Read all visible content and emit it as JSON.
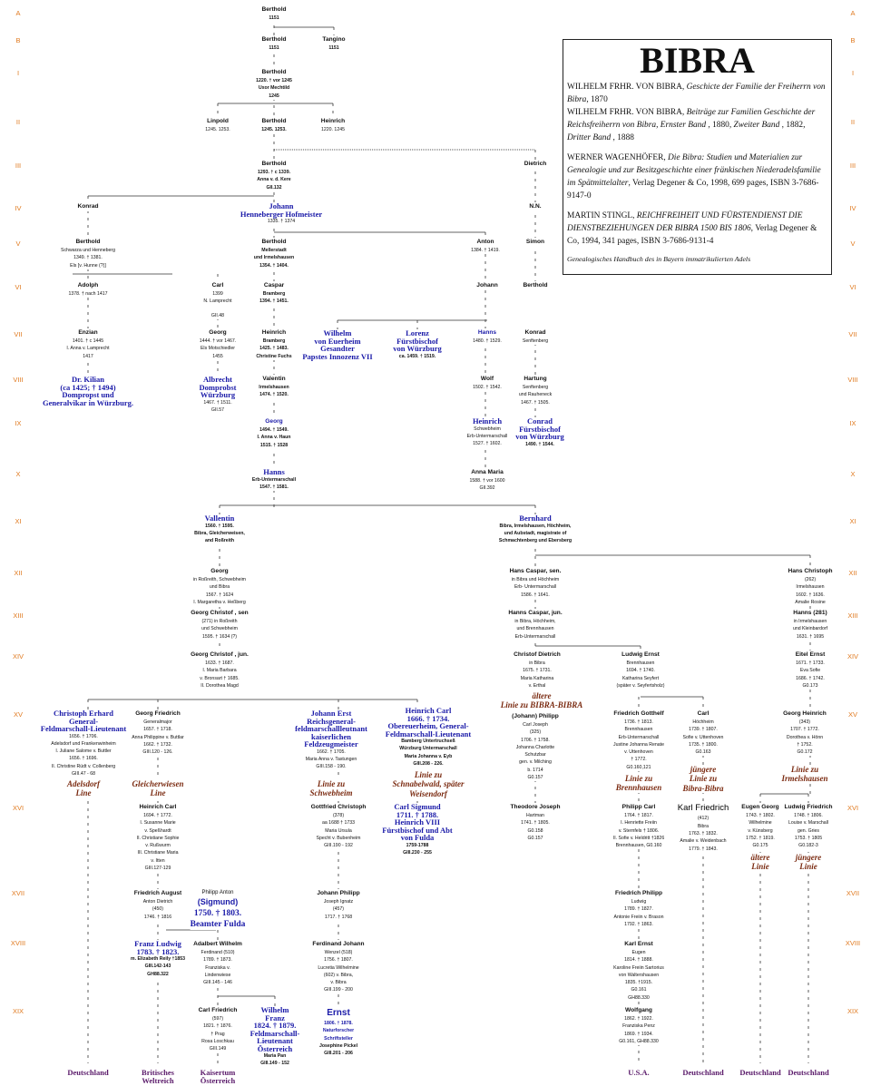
{
  "generations": [
    "A",
    "B",
    "I",
    "II",
    "III",
    "IV",
    "V",
    "VI",
    "VII",
    "VIII",
    "IX",
    "X",
    "XI",
    "XII",
    "XIII",
    "XIV",
    "XV",
    "XVI",
    "XVII",
    "XVIII",
    "XIX"
  ],
  "references": {
    "title": "BIBRA",
    "entries": [
      [
        {
          "t": "WILHELM FRHR. VON BIBRA, ",
          "i": false
        },
        {
          "t": "Geschicte der Familie der Freiherrn von Bibra",
          "i": true
        },
        {
          "t": ", 1870",
          "i": false
        }
      ],
      [
        {
          "t": "WILHELM FRHR. VON BIBRA, ",
          "i": false
        },
        {
          "t": "Beiträge zur Familien Geschichte der Reichsfreiherrn von Bibra, Ernster Band",
          "i": true
        },
        {
          "t": " , 1880, ",
          "i": false
        },
        {
          "t": "Zweiter Band",
          "i": true
        },
        {
          "t": " , 1882, ",
          "i": false
        },
        {
          "t": "Dritter Band",
          "i": true
        },
        {
          "t": " , 1888",
          "i": false
        }
      ],
      [
        {
          "t": "WERNER WAGENHÖFER, ",
          "i": false
        },
        {
          "t": "Die Bibra: Studien und Materialien zur Genealogie und zur Besitzgeschichte einer fränkischen Niederadelsfamilie im Spätmittelalter",
          "i": true
        },
        {
          "t": ", Verlag Degener & Co, 1998, 699 pages, ISBN 3-7686-9147-0",
          "i": false
        }
      ],
      [
        {
          "t": "MARTIN STINGL, ",
          "i": false
        },
        {
          "t": "REICHFREIHEIT UND FÜRSTENDIENST DIE DIENSTBEZIEHUNGEN DER BIBRA 1500 BIS 1806",
          "i": true
        },
        {
          "t": ", Verlag Degener & Co, 1994, 341 pages,  ISBN 3-7686-9131-4",
          "i": false
        }
      ]
    ],
    "footer": "Genealogisches Handbuch des in Bayern immatrikulierten Adels"
  },
  "persons": [
    {
      "name": "Berthold",
      "details": [
        "1151"
      ],
      "kind": "strong"
    },
    {
      "name": "Berthold",
      "details": [
        "1151"
      ],
      "kind": "strong"
    },
    {
      "name": "Tangino",
      "details": [
        "1151"
      ],
      "kind": "strong"
    },
    {
      "name": "Berthold",
      "details": [
        "1220. † vor 1245",
        "Uxor Mechtild",
        "1245"
      ],
      "kind": "strong"
    },
    {
      "name": "Linpold",
      "details": [
        "1245. 1253."
      ],
      "kind": "person"
    },
    {
      "name": "Berthold",
      "details": [
        "1245. 1253."
      ],
      "kind": "strong"
    },
    {
      "name": "Heinrich",
      "details": [
        "1220. 1245"
      ],
      "kind": "person"
    },
    {
      "name": "Berthold",
      "details": [
        "1293. † c 1339.",
        "Anna v. d. Kere",
        "GII.132"
      ],
      "kind": "strong"
    },
    {
      "name": "Dietrich",
      "details": [],
      "kind": "person"
    },
    {
      "name": "Konrad",
      "details": [],
      "kind": "person"
    },
    {
      "name": "Johann\nHenneberger Hofmeister",
      "details": [
        "1335. † 1374"
      ],
      "kind": "notable"
    },
    {
      "name": "N.N.",
      "details": [],
      "kind": "person"
    },
    {
      "name": "Berthold",
      "details": [
        "Schwarza und Henneberg",
        "1349. † 1381.",
        "Els [v. Hunne (?)]"
      ],
      "kind": "person"
    },
    {
      "name": "Berthold",
      "details": [
        "Mellerstadt",
        "und Irmelshausen",
        "1354. † 1404."
      ],
      "kind": "strong"
    },
    {
      "name": "Anton",
      "details": [
        "1384. † 1419."
      ],
      "kind": "person"
    },
    {
      "name": "Simon",
      "details": [],
      "kind": "person"
    },
    {
      "name": "Adolph",
      "details": [
        "1378. † nach 1417"
      ],
      "kind": "person"
    },
    {
      "name": "Carl",
      "details": [
        "1399",
        "N. Lamprecht",
        "",
        "GII.48"
      ],
      "kind": "person"
    },
    {
      "name": "Caspar",
      "details": [
        "Bramberg",
        "1394. † 1451."
      ],
      "kind": "strong"
    },
    {
      "name": "Johann",
      "details": [],
      "kind": "person"
    },
    {
      "name": "Berthold",
      "details": [],
      "kind": "person"
    },
    {
      "name": "Enzian",
      "details": [
        "1401. † c 1445",
        "I. Anna v. Lamprecht",
        "1417"
      ],
      "kind": "person"
    },
    {
      "name": "Georg",
      "details": [
        "1444. † vor 1467.",
        "Els Motschiedler",
        "1455"
      ],
      "kind": "person"
    },
    {
      "name": "Heinrich",
      "details": [
        "Bramberg",
        "1425. † 1483.",
        "Christine Fuchs"
      ],
      "kind": "strong"
    },
    {
      "name": "Wilhelm\nvon Euerheim\nGesandter\nPapstes Innozenz VII",
      "details": [],
      "kind": "notable"
    },
    {
      "name": "Lorenz\nFürstbischof\nvon Würzburg",
      "details": [
        "ca. 1459. † 1519."
      ],
      "kind": "notable strong"
    },
    {
      "name": "Hanns",
      "details": [
        "1480. † 1529."
      ],
      "kind": "notable-small"
    },
    {
      "name": "Konrad",
      "details": [
        "Senftenberg"
      ],
      "kind": "person"
    },
    {
      "name": "Dr. Kilian\n(ca 1425; † 1494)\nDompropst und\nGeneralvikar in Würzburg.",
      "details": [],
      "kind": "notable"
    },
    {
      "name": "Albrecht\nDomprobst\nWürzburg",
      "details": [
        "1467. † 1511.",
        "GII.57"
      ],
      "kind": "notable"
    },
    {
      "name": "Valentin",
      "details": [
        "Irmelshausen",
        "1474. † 1520."
      ],
      "kind": "strong"
    },
    {
      "name": "Wolf",
      "details": [
        "1502. † 1542."
      ],
      "kind": "person"
    },
    {
      "name": "Hartung",
      "details": [
        "Senftenberg",
        "und Rauheneck",
        "1467. † 1505."
      ],
      "kind": "person"
    },
    {
      "name": "Georg",
      "details": [
        "1494. † 1549.",
        "I. Anna v. Haun",
        "1515. † 1528"
      ],
      "kind": "notable-small strong"
    },
    {
      "name": "Heinrich",
      "details": [
        "Schwebheim",
        "Erb-Untermarschall",
        "1527. † 1602."
      ],
      "kind": "notable"
    },
    {
      "name": "Conrad\nFürstbischof\nvon Würzburg",
      "details": [
        "1490. † 1544."
      ],
      "kind": "notable strong"
    },
    {
      "name": "Hanns",
      "details": [
        "Erb-Untermarschall",
        "1547. † 1581."
      ],
      "kind": "notable strong"
    },
    {
      "name": "Anna Maria",
      "details": [
        "1588. † vor 1600",
        "GII.392"
      ],
      "kind": "person"
    },
    {
      "name": "Vallentin",
      "details": [
        "1560. † 1595.",
        "Bibra, Gleicherweisen,",
        "and Roßreith"
      ],
      "kind": "notable strong"
    },
    {
      "name": "Bernhard",
      "details": [
        "Bibra, Irmelshausen, Höchheim,",
        "und Aubstadt, magistrate of",
        "Schmachtenberg und Ebersberg"
      ],
      "kind": "notable strong"
    },
    {
      "name": "Georg",
      "details": [
        "in Roßreith, Schwebheim",
        "und Bibra",
        "1567. † 1624",
        "I. Margaretha v. Heßberg"
      ],
      "kind": "person"
    },
    {
      "name": "Hans Caspar, sen.",
      "details": [
        "in Bibra und Höchheim",
        "Erb- Untermarschall",
        "1586. † 1641."
      ],
      "kind": "person"
    },
    {
      "name": "Hans Christoph",
      "details": [
        "(262)",
        "Irmelshausen",
        "1602. † 1636.",
        "Amalie Rosine"
      ],
      "kind": "person"
    },
    {
      "name": "Georg Christof , sen",
      "details": [
        "(271) in Roßreith",
        "und Schwebheim",
        "1595. † 1634 (?)"
      ],
      "kind": "person"
    },
    {
      "name": "Hanns Caspar, jun.",
      "details": [
        "in Bibra, Höchheim,",
        "und Brennhausen",
        "Erb-Untermarschall"
      ],
      "kind": "person"
    },
    {
      "name": "Hanns (281)",
      "details": [
        "in Irmelshausen",
        "und Kleinbardorf",
        "1631. † 1695"
      ],
      "kind": "person"
    },
    {
      "name": "Georg Christof , jun.",
      "details": [
        "1633. † 1687.",
        "I. Maria Barbara",
        "v. Bronsart † 1685.",
        "II. Dorothea Magd"
      ],
      "kind": "person"
    },
    {
      "name": "Christof Dietrich",
      "details": [
        "in Bibra",
        "1675. † 1731.",
        "Maria Katharina",
        "v. Erthal"
      ],
      "kind": "person"
    },
    {
      "name": "Ludwig Ernst",
      "details": [
        "Brennhausen",
        "1694. † 1740.",
        "Katharina Seyfert",
        "(später v. Seyfertsholz)"
      ],
      "kind": "person"
    },
    {
      "name": "Eitel Ernst",
      "details": [
        "1671. † 1733.",
        "Eva Sofie",
        "1686. † 1742.",
        "G0.173"
      ],
      "kind": "person"
    },
    {
      "name": "Christoph Erhard\nGeneral-\nFeldmarschall-Lieutenant",
      "details": [
        "1656. † 1706.",
        "Adelsdorf und Frankenwinheim",
        "I. Juliane Salome v. Buttler",
        "1656. † 1696.",
        "II. Christine Rüdt v. Collenberg",
        "GIII.47 - 68"
      ],
      "kind": "notable"
    },
    {
      "name": "Georg Friedrich",
      "details": [
        "Generalmajor",
        "1657. † 1718.",
        "Anna Philippine v. Buttlar",
        "1662. † 1732.",
        "GIII.120 - 126."
      ],
      "kind": "person"
    },
    {
      "name": "Johann Erst\nReichsgeneral-\nfeldmarschallleutnant\nkaiserlichen\nFeldzeugmeister",
      "details": [
        "1662. † 1705.",
        "Maria Anna v. Tastungen",
        "GIII.158 - 190."
      ],
      "kind": "notable"
    },
    {
      "name": "Heinrich Carl\n1666. † 1734.\nObereuerheim, General-\nFeldmarschall-Lieutenant",
      "details": [
        "Bamberg Untertruchseß",
        "Würzburg Untermarschall",
        "Maria Johanna v. Eyb",
        "GIII.208 - 226."
      ],
      "kind": "notable strong"
    },
    {
      "name": "(Johann) Philipp",
      "details": [
        "Carl Joseph",
        "(325)",
        "1706. † 1758.",
        "Johanna Charlotte",
        "Schutzbar",
        "gen. v. Milching",
        "b. 1714",
        "G0.157"
      ],
      "kind": "person"
    },
    {
      "name": "Friedrich Gotthelf",
      "details": [
        "1736. † 1813.",
        "Brennhausen",
        "Erb-Untermarschall",
        "Justine Johanna Renate",
        "v. Uttenhoven",
        "† 1772.",
        "G0.160,121"
      ],
      "kind": "person"
    },
    {
      "name": "Carl",
      "details": [
        "Höchheim",
        "1739. † 1807.",
        "Sofie v. Uttenhoven",
        "1735. † 1800.",
        "G0.163"
      ],
      "kind": "person"
    },
    {
      "name": "Georg Heinrich",
      "details": [
        "(343)",
        "1707. † 1772.",
        "Dorothea v. Hönn",
        "† 1752.",
        "G0.172"
      ],
      "kind": "person"
    },
    {
      "name": "Heinrich Carl",
      "details": [
        "1694. † 1772.",
        "I. Susanne Marie",
        "v. Speßhardt",
        "II. Christiane Sophie",
        "v. Rußwurm",
        "III. Christiane Maria",
        "v. Itten",
        "GIII.127-129"
      ],
      "kind": "person"
    },
    {
      "name": "Gottfried Christoph",
      "details": [
        "(378)",
        "aa 1688 † 1733",
        "Maria Ursula",
        "Specht v. Bubenheim",
        "GIII.190 - 192"
      ],
      "kind": "person"
    },
    {
      "name": "Carl Sigmund\n1711. † 1788.\nHeinrich VIII\nFürstbischof und Abt\nvon Fulda",
      "details": [
        "1759-1788",
        "GIII.230 - 255"
      ],
      "kind": "notable strong"
    },
    {
      "name": "Theodore Joseph",
      "details": [
        "Hartman",
        "1741. † 1805.",
        "G0.158",
        "G0.157"
      ],
      "kind": "person"
    },
    {
      "name": "Philipp Carl",
      "details": [
        "1764. † 1817.",
        "I. Henriette Freiin",
        "v. Sternfels † 1806.",
        "II. Sofie v. Heldritt †1826",
        "Brennhausen, G0.160"
      ],
      "kind": "person"
    },
    {
      "name": "Karl Friedrich",
      "details": [
        "(412)",
        "Bibra",
        "1763. † 1832.",
        "Amalie v. Weidenbach",
        "1779. † 1843."
      ],
      "kind": "big"
    },
    {
      "name": "Eugen Georg",
      "details": [
        "1743. † 1802.",
        "Wilhelmine",
        "v. Künsberg",
        "1752. † 1819.",
        "G0.175"
      ],
      "kind": "person"
    },
    {
      "name": "Ludwig Friedrich",
      "details": [
        "1748. † 1806.",
        "Louise v. Marschall",
        "gen. Gries",
        "1753. † 1805",
        "G0.182-3"
      ],
      "kind": "person"
    },
    {
      "name": "Friedrich August",
      "details": [
        "Anton Dietrich",
        "(450)",
        "1746. † 1816"
      ],
      "kind": "person"
    },
    {
      "name": "Philipp Anton",
      "details": [
        "(Sigmund)",
        "1750. † 1803.",
        "Beamter Fulda"
      ],
      "kind": "philipp"
    },
    {
      "name": "Johann Philipp",
      "details": [
        "Joseph Ignatz",
        "(457)",
        "1717. † 1768"
      ],
      "kind": "person"
    },
    {
      "name": "Friedrich Philipp",
      "details": [
        "Ludwig",
        "1789. † 1827.",
        "Antonie Freiin v. Brason",
        "1792. † 1863."
      ],
      "kind": "person"
    },
    {
      "name": "Franz Ludwig\n1783. † 1823.",
      "details": [
        "m. Elizabeth Reily †1853",
        "GIII.142-143",
        "GH88.322"
      ],
      "kind": "notable strong"
    },
    {
      "name": "Adalbert Wilhelm",
      "details": [
        "Ferdinand (510)",
        "1789. † 1873.",
        "Franziska v.",
        "Lindenwiese",
        "GIII.145 - 146"
      ],
      "kind": "person"
    },
    {
      "name": "Ferdinand Johann",
      "details": [
        "Wenzel (518)",
        "1756. † 1807.",
        "Lucretia Wilhelmine",
        "(602) v. Bibra,",
        "v. Bibra",
        "GIII.199 - 200"
      ],
      "kind": "person"
    },
    {
      "name": "Karl Ernst",
      "details": [
        "Eugen",
        "1814. † 1888.",
        "Karoline Freiin Sartorius",
        "von Waltershausen",
        "1835. †1915.",
        "G0.161",
        "GH88.330"
      ],
      "kind": "person"
    },
    {
      "name": "Carl Friedrich",
      "details": [
        "(597)",
        "1821. † 1876.",
        "† Prag",
        "Rosa Loschkau",
        "GIII.149"
      ],
      "kind": "person"
    },
    {
      "name": "Wilhelm\nFranz\n1824. † 1879.\nFeldmarschall-\nLieutenant\nÖsterreich",
      "details": [
        "Maria Pan",
        "GIII.149 - 152"
      ],
      "kind": "notable strong"
    },
    {
      "name": "Ernst",
      "details": [
        "1806. † 1878.",
        "Naturforscher",
        "Schriftsteller",
        "Josephine Pickel",
        "GIII.201 - 206"
      ],
      "kind": "ernst"
    },
    {
      "name": "Wolfgang",
      "details": [
        "1862. † 1922.",
        "Franziska Penz",
        "1869. † 1934.",
        "G0.161, GH88.330"
      ],
      "kind": "person"
    }
  ],
  "line_labels": [
    "ältere\nLinie zu BIBRA-BIBRA",
    "Adelsdorf\nLine",
    "Gleicherwiesen\nLine",
    "Linie zu\nSchwebheim",
    "Linie zu\nSchnabelwald, später\nWeisendorf",
    "Linie zu\nBrennhausen",
    "jüngere\nLinie zu\nBibra-Bibra",
    "Linie zu\nIrmelshausen",
    "ältere\nLinie",
    "jüngere\nLinie"
  ],
  "countries": [
    "Deutschland",
    "Britisches\nWeltreich",
    "Kaisertum\nÖsterreich",
    "U.S.A.",
    "Deutschland",
    "Deutschland",
    "Deutschland"
  ],
  "colors": {
    "generation": "#e07a20",
    "notable": "#1a1aa8",
    "line_label": "#7a2a10",
    "country": "#5a1a6a"
  }
}
